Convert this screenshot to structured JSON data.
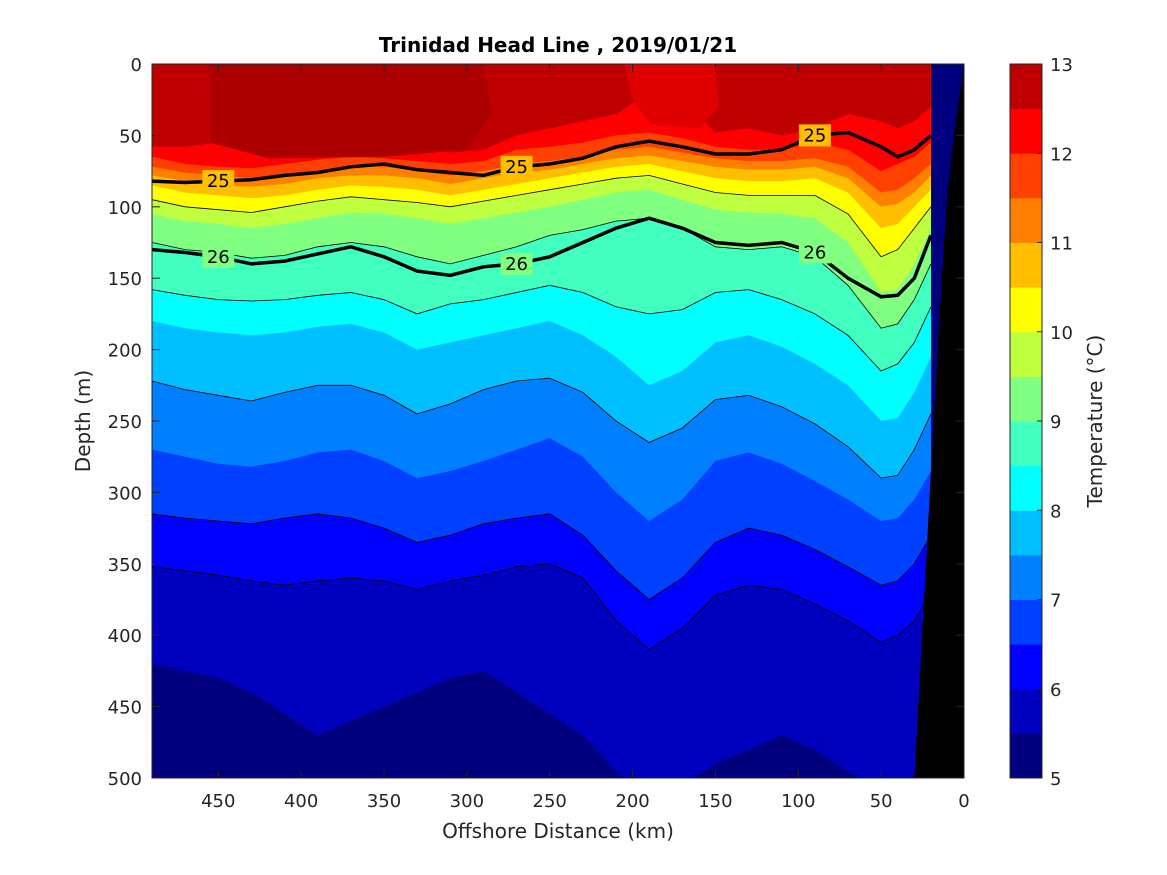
{
  "chart_data": {
    "type": "heatmap",
    "title": "Trinidad Head Line , 2019/01/21",
    "xlabel": "Offshore Distance (km)",
    "ylabel": "Depth (m)",
    "xlim": [
      490,
      0
    ],
    "ylim": [
      0,
      500
    ],
    "x_ticks": [
      "450",
      "400",
      "350",
      "300",
      "250",
      "200",
      "150",
      "100",
      "50",
      "0"
    ],
    "y_ticks": [
      "0",
      "50",
      "100",
      "150",
      "200",
      "250",
      "300",
      "350",
      "400",
      "450",
      "500"
    ],
    "colorbar": {
      "label": "Temperature (°C)",
      "ticks": [
        "5",
        "6",
        "7",
        "8",
        "9",
        "10",
        "11",
        "12",
        "13"
      ],
      "range": [
        5,
        13
      ],
      "levels": [
        5,
        5.5,
        6,
        6.5,
        7,
        7.5,
        8,
        8.5,
        9,
        9.5,
        10,
        10.5,
        11,
        11.5,
        12,
        12.5,
        13
      ],
      "colors": [
        "#00007f",
        "#0000bf",
        "#0000ff",
        "#0040ff",
        "#0080ff",
        "#00bfff",
        "#00ffff",
        "#40ffbf",
        "#80ff80",
        "#bfff40",
        "#ffff00",
        "#ffbf00",
        "#ff8000",
        "#ff4000",
        "#ff0000",
        "#bf0000"
      ]
    },
    "x_stations": [
      490,
      470,
      450,
      430,
      410,
      390,
      370,
      350,
      330,
      310,
      290,
      270,
      250,
      230,
      210,
      190,
      170,
      150,
      130,
      110,
      90,
      70,
      50,
      40,
      30,
      20
    ],
    "isotherm_depths": [
      {
        "temp": 12.5,
        "depths": [
          58,
          58,
          55,
          58,
          60,
          58,
          55,
          55,
          58,
          62,
          60,
          50,
          45,
          40,
          35,
          20,
          25,
          48,
          45,
          50,
          45,
          35,
          40,
          45,
          40,
          30
        ]
      },
      {
        "temp": 12,
        "depths": [
          65,
          70,
          72,
          73,
          70,
          67,
          65,
          66,
          68,
          70,
          68,
          60,
          58,
          55,
          50,
          48,
          52,
          58,
          60,
          60,
          55,
          60,
          75,
          70,
          65,
          55
        ]
      },
      {
        "temp": 11.5,
        "depths": [
          72,
          76,
          78,
          80,
          78,
          75,
          72,
          72,
          75,
          78,
          75,
          70,
          68,
          65,
          60,
          58,
          62,
          66,
          68,
          68,
          66,
          72,
          90,
          88,
          80,
          70
        ]
      },
      {
        "temp": 11,
        "depths": [
          78,
          82,
          85,
          86,
          84,
          80,
          78,
          78,
          80,
          84,
          80,
          76,
          74,
          70,
          66,
          64,
          68,
          72,
          74,
          74,
          72,
          80,
          100,
          98,
          90,
          78
        ]
      },
      {
        "temp": 10.5,
        "depths": [
          85,
          90,
          92,
          94,
          92,
          88,
          85,
          86,
          88,
          92,
          88,
          84,
          80,
          76,
          72,
          70,
          75,
          80,
          82,
          82,
          80,
          90,
          115,
          112,
          100,
          88
        ]
      },
      {
        "temp": 10,
        "depths": [
          95,
          100,
          102,
          104,
          100,
          96,
          93,
          95,
          97,
          100,
          96,
          92,
          88,
          84,
          80,
          78,
          84,
          90,
          92,
          92,
          92,
          105,
          135,
          130,
          115,
          100
        ]
      },
      {
        "temp": 9.5,
        "depths": [
          105,
          110,
          112,
          115,
          112,
          108,
          104,
          105,
          108,
          112,
          108,
          104,
          100,
          95,
          90,
          88,
          95,
          102,
          104,
          105,
          108,
          125,
          160,
          158,
          140,
          115
        ]
      },
      {
        "temp": 9,
        "depths": [
          125,
          130,
          132,
          136,
          134,
          128,
          125,
          128,
          135,
          140,
          134,
          128,
          120,
          116,
          110,
          108,
          115,
          128,
          130,
          128,
          135,
          155,
          185,
          182,
          165,
          140
        ]
      },
      {
        "temp": 8.5,
        "depths": [
          158,
          162,
          165,
          166,
          165,
          162,
          160,
          165,
          175,
          168,
          165,
          160,
          155,
          160,
          170,
          175,
          172,
          160,
          158,
          165,
          175,
          190,
          215,
          210,
          195,
          170
        ]
      },
      {
        "temp": 8,
        "depths": [
          180,
          185,
          188,
          190,
          188,
          184,
          182,
          188,
          200,
          195,
          190,
          185,
          180,
          190,
          205,
          225,
          215,
          195,
          190,
          198,
          210,
          225,
          250,
          248,
          230,
          205
        ]
      },
      {
        "temp": 7.5,
        "depths": [
          222,
          228,
          232,
          236,
          230,
          225,
          225,
          232,
          245,
          238,
          228,
          222,
          220,
          230,
          250,
          265,
          255,
          235,
          232,
          240,
          252,
          268,
          290,
          288,
          270,
          245
        ]
      },
      {
        "temp": 7,
        "depths": [
          270,
          275,
          280,
          282,
          278,
          272,
          270,
          278,
          290,
          285,
          278,
          270,
          262,
          275,
          300,
          320,
          305,
          278,
          272,
          280,
          292,
          305,
          320,
          318,
          305,
          285
        ]
      },
      {
        "temp": 6.5,
        "depths": [
          315,
          318,
          320,
          322,
          318,
          315,
          318,
          325,
          335,
          330,
          322,
          318,
          315,
          330,
          355,
          375,
          360,
          335,
          325,
          330,
          340,
          352,
          365,
          362,
          350,
          330
        ]
      },
      {
        "temp": 6,
        "depths": [
          352,
          355,
          358,
          362,
          365,
          362,
          360,
          362,
          368,
          362,
          358,
          352,
          350,
          360,
          390,
          410,
          395,
          372,
          365,
          368,
          378,
          390,
          405,
          400,
          390,
          370
        ]
      },
      {
        "temp": 5.5,
        "depths": [
          420,
          425,
          430,
          440,
          455,
          470,
          460,
          450,
          440,
          430,
          425,
          440,
          455,
          470,
          495,
          510,
          505,
          490,
          480,
          470,
          480,
          495,
          510,
          510,
          505,
          490
        ]
      }
    ],
    "density_contours": [
      {
        "label": "25",
        "depths": [
          82,
          83,
          82,
          81,
          78,
          76,
          72,
          70,
          74,
          76,
          78,
          72,
          70,
          66,
          58,
          54,
          58,
          63,
          63,
          60,
          50,
          48,
          58,
          65,
          60,
          50
        ]
      },
      {
        "label": "26",
        "depths": [
          130,
          132,
          135,
          140,
          138,
          133,
          128,
          135,
          145,
          148,
          142,
          140,
          135,
          125,
          115,
          108,
          115,
          125,
          127,
          125,
          132,
          150,
          163,
          162,
          150,
          120
        ]
      }
    ],
    "bottom_profile": [
      [
        30,
        500
      ],
      [
        22,
        330
      ],
      [
        15,
        180
      ],
      [
        10,
        90
      ],
      [
        5,
        40
      ],
      [
        0,
        0
      ]
    ]
  }
}
